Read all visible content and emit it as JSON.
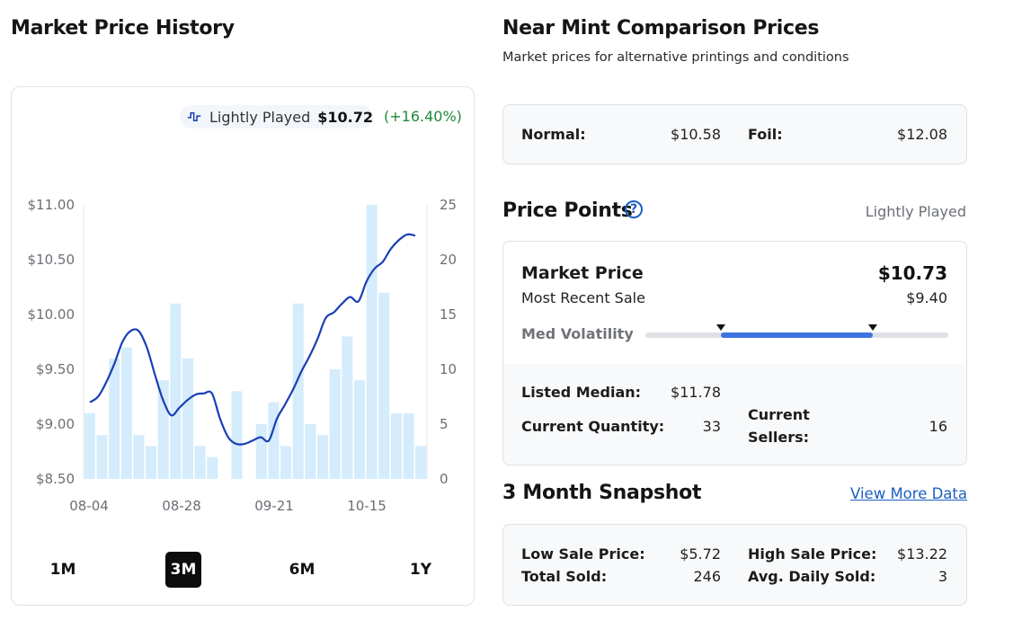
{
  "left": {
    "title": "Market Price History",
    "legend": {
      "label": "Lightly Played",
      "price": "$10.72",
      "change": "(+16.40%)"
    },
    "ranges": [
      "1M",
      "3M",
      "6M",
      "1Y"
    ],
    "active_range": "3M"
  },
  "chart_data": {
    "type": "line",
    "x_ticks": [
      "08-04",
      "08-28",
      "09-21",
      "10-15"
    ],
    "y_left_ticks": [
      "$11.00",
      "$10.50",
      "$10.00",
      "$9.50",
      "$9.00",
      "$8.50"
    ],
    "y_right_ticks": [
      "25",
      "20",
      "15",
      "10",
      "5",
      "0"
    ],
    "y_left_range": [
      8.5,
      11.0
    ],
    "y_right_range": [
      0,
      25
    ],
    "price_series": {
      "name": "Lightly Played",
      "color": "#1a3fb5",
      "values": [
        9.2,
        9.25,
        9.38,
        9.55,
        9.75,
        9.85,
        9.85,
        9.7,
        9.45,
        9.22,
        9.08,
        9.15,
        9.22,
        9.27,
        9.28,
        9.28,
        9.05,
        8.88,
        8.82,
        8.82,
        8.85,
        8.88,
        8.85,
        9.05,
        9.18,
        9.32,
        9.48,
        9.62,
        9.78,
        9.97,
        10.02,
        10.1,
        10.16,
        10.12,
        10.3,
        10.42,
        10.48,
        10.6,
        10.68,
        10.73,
        10.72
      ]
    },
    "volume_series": {
      "name": "Quantity Sold",
      "color": "#d4ecfb",
      "values": [
        6,
        4,
        11,
        12,
        4,
        3,
        9,
        16,
        11,
        3,
        2,
        0,
        8,
        0,
        5,
        7,
        3,
        16,
        5,
        4,
        10,
        13,
        9,
        25,
        17,
        6,
        6,
        3
      ]
    }
  },
  "comparison": {
    "title": "Near Mint Comparison Prices",
    "subtitle": "Market prices for alternative printings and conditions",
    "normal_label": "Normal:",
    "normal_value": "$10.58",
    "foil_label": "Foil:",
    "foil_value": "$12.08"
  },
  "price_points": {
    "title": "Price Points",
    "help_icon": "?",
    "condition": "Lightly Played",
    "market_label": "Market Price",
    "market_value": "$10.73",
    "recent_label": "Most Recent Sale",
    "recent_value": "$9.40",
    "volatility_label": "Med Volatility",
    "volatility_range": [
      0.25,
      0.75
    ],
    "volatility_color": "#3d74e0",
    "listed_median_label": "Listed Median:",
    "listed_median_value": "$11.78",
    "current_qty_label": "Current Quantity:",
    "current_qty_value": "33",
    "current_sellers_label_1": "Current",
    "current_sellers_label_2": "Sellers:",
    "current_sellers_value": "16"
  },
  "snapshot": {
    "title": "3 Month Snapshot",
    "link": "View More Data",
    "low_label": "Low Sale Price:",
    "low_value": "$5.72",
    "high_label": "High Sale Price:",
    "high_value": "$13.22",
    "total_label": "Total Sold:",
    "total_value": "246",
    "avg_label": "Avg. Daily Sold:",
    "avg_value": "3"
  }
}
